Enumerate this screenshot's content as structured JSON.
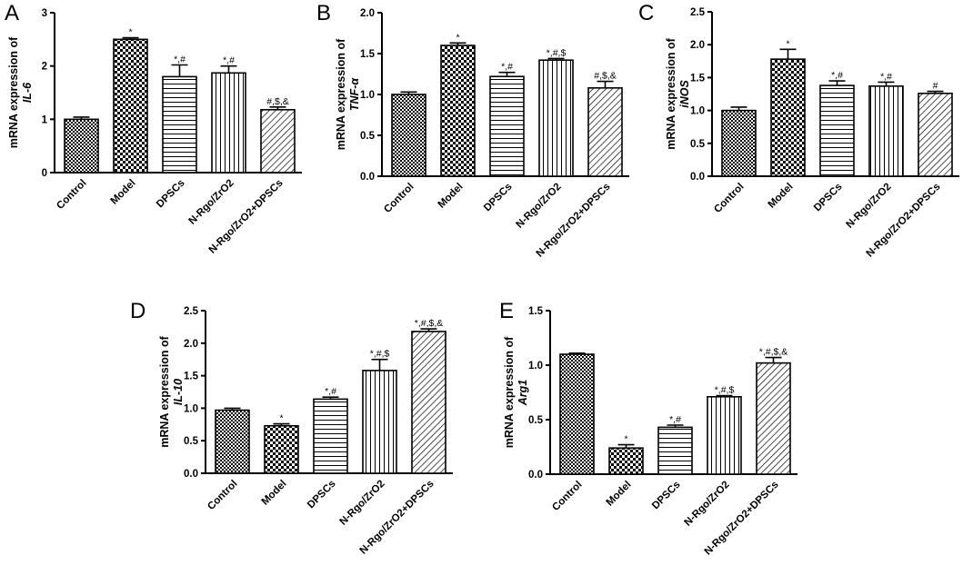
{
  "figure_title": "mRNA expression panels A-E",
  "chart_data": [
    {
      "type": "bar",
      "panel": "A",
      "ylabel_prefix": "mRNA expression of",
      "ylabel_gene": "IL-6",
      "categories": [
        "Control",
        "Model",
        "DPSCs",
        "N-Rgo/ZrO2",
        "N-Rgo/ZrO2+DPSCs"
      ],
      "values": [
        1.0,
        2.5,
        1.8,
        1.87,
        1.18
      ],
      "errors": [
        0.04,
        0.03,
        0.22,
        0.13,
        0.05
      ],
      "annotations": [
        "",
        "*",
        "*,#",
        "*,#",
        "#,$,&"
      ],
      "ylim": [
        0,
        3
      ],
      "yticks": [
        "0",
        "1",
        "2",
        "3"
      ]
    },
    {
      "type": "bar",
      "panel": "B",
      "ylabel_prefix": "mRNA expression of",
      "ylabel_gene": "TNF-α",
      "categories": [
        "Control",
        "Model",
        "DPSCs",
        "N-Rgo/ZrO2",
        "N-Rgo/ZrO2+DPSCs"
      ],
      "values": [
        1.0,
        1.6,
        1.22,
        1.42,
        1.08
      ],
      "errors": [
        0.03,
        0.03,
        0.05,
        0.02,
        0.08
      ],
      "annotations": [
        "",
        "*",
        "*,#",
        "*,#,$",
        "#,$,&"
      ],
      "ylim": [
        0,
        2
      ],
      "yticks": [
        "0.0",
        "0.5",
        "1.0",
        "1.5",
        "2.0"
      ]
    },
    {
      "type": "bar",
      "panel": "C",
      "ylabel_prefix": "mRNA expression of",
      "ylabel_gene": "iNOS",
      "categories": [
        "Control",
        "Model",
        "DPSCs",
        "N-Rgo/ZrO2",
        "N-Rgo/ZrO2+DPSCs"
      ],
      "values": [
        1.0,
        1.78,
        1.38,
        1.37,
        1.26
      ],
      "errors": [
        0.05,
        0.15,
        0.07,
        0.06,
        0.03
      ],
      "annotations": [
        "",
        "*",
        "*,#",
        "*,#",
        "#"
      ],
      "ylim": [
        0,
        2.5
      ],
      "yticks": [
        "0.0",
        "0.5",
        "1.0",
        "1.5",
        "2.0",
        "2.5"
      ]
    },
    {
      "type": "bar",
      "panel": "D",
      "ylabel_prefix": "mRNA expression of",
      "ylabel_gene": "IL-10",
      "categories": [
        "Control",
        "Model",
        "DPSCs",
        "N-Rgo/ZrO2",
        "N-Rgo/ZrO2+DPSCs"
      ],
      "values": [
        0.97,
        0.73,
        1.14,
        1.58,
        2.18
      ],
      "errors": [
        0.03,
        0.03,
        0.03,
        0.17,
        0.04
      ],
      "annotations": [
        "",
        "*",
        "*,#",
        "*,#,$",
        "*,#,$,&"
      ],
      "ylim": [
        0,
        2.5
      ],
      "yticks": [
        "0.0",
        "0.5",
        "1.0",
        "1.5",
        "2.0",
        "2.5"
      ]
    },
    {
      "type": "bar",
      "panel": "E",
      "ylabel_prefix": "mRNA expression of",
      "ylabel_gene": "Arg1",
      "categories": [
        "Control",
        "Model",
        "DPSCs",
        "N-Rgo/ZrO2",
        "N-Rgo/ZrO2+DPSCs"
      ],
      "values": [
        1.1,
        0.24,
        0.43,
        0.71,
        1.02
      ],
      "errors": [
        0.01,
        0.03,
        0.02,
        0.01,
        0.05
      ],
      "annotations": [
        "",
        "*",
        "*,#",
        "*,#,$",
        "*,#,$,&"
      ],
      "ylim": [
        0,
        1.5
      ],
      "yticks": [
        "0.0",
        "0.5",
        "1.0",
        "1.5"
      ]
    }
  ]
}
